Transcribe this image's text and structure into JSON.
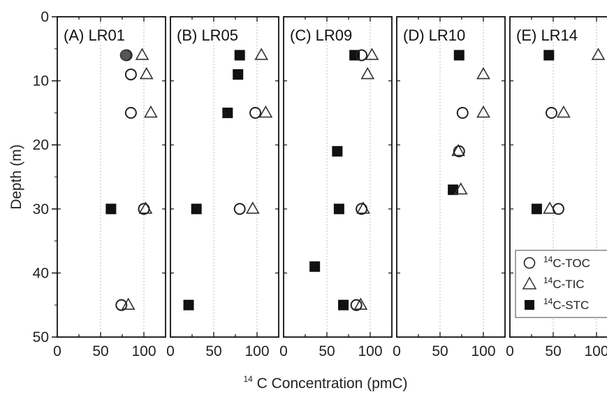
{
  "chart_data": {
    "type": "scatter",
    "xlabel_sup": "14",
    "xlabel_main": "C Concentration (pmC)",
    "ylabel": "Depth (m)",
    "ylim": [
      0,
      50
    ],
    "yticks": [
      "0",
      "10",
      "20",
      "30",
      "40",
      "50"
    ],
    "xlim": [
      0,
      125
    ],
    "xticks": [
      "0",
      "50",
      "100"
    ],
    "grid": "vertical dotted at 50 and 100",
    "legend": {
      "placement": "bottom-right of panel E",
      "entries": [
        {
          "sup": "14",
          "text": "C-TOC",
          "marker": "circle-open"
        },
        {
          "sup": "14",
          "text": "C-TIC",
          "marker": "triangle-open"
        },
        {
          "sup": "14",
          "text": "C-STC",
          "marker": "square-filled"
        }
      ]
    },
    "panels": [
      {
        "title": "(A) LR01",
        "toc": [
          [
            80,
            6
          ],
          [
            85,
            9
          ],
          [
            85,
            15
          ],
          [
            100,
            30
          ],
          [
            74,
            45
          ]
        ],
        "tic": [
          [
            98,
            6
          ],
          [
            103,
            9
          ],
          [
            108,
            15
          ],
          [
            102,
            30
          ],
          [
            82,
            45
          ]
        ],
        "stc": [
          [
            62,
            30
          ]
        ],
        "toc_filled": [
          [
            79,
            6
          ]
        ]
      },
      {
        "title": "(B) LR05",
        "toc": [
          [
            98,
            15
          ],
          [
            80,
            30
          ]
        ],
        "tic": [
          [
            105,
            6
          ],
          [
            110,
            15
          ],
          [
            95,
            30
          ]
        ],
        "stc": [
          [
            80,
            6
          ],
          [
            78,
            9
          ],
          [
            66,
            15
          ],
          [
            30,
            30
          ],
          [
            21,
            45
          ]
        ]
      },
      {
        "title": "(C) LR09",
        "toc": [
          [
            90,
            6
          ],
          [
            90,
            30
          ],
          [
            84,
            45
          ]
        ],
        "tic": [
          [
            102,
            6
          ],
          [
            97,
            9
          ],
          [
            92,
            30
          ],
          [
            89,
            45
          ]
        ],
        "stc": [
          [
            82,
            6
          ],
          [
            62,
            21
          ],
          [
            64,
            30
          ],
          [
            36,
            39
          ],
          [
            69,
            45
          ]
        ]
      },
      {
        "title": "(D) LR10",
        "toc": [
          [
            76,
            15
          ],
          [
            72,
            21
          ]
        ],
        "tic": [
          [
            100,
            9
          ],
          [
            100,
            15
          ],
          [
            71,
            21
          ],
          [
            74,
            27
          ]
        ],
        "stc": [
          [
            72,
            6
          ],
          [
            65,
            27
          ]
        ]
      },
      {
        "title": "(E) LR14",
        "toc": [
          [
            48,
            15
          ],
          [
            56,
            30
          ]
        ],
        "tic": [
          [
            102,
            6
          ],
          [
            62,
            15
          ],
          [
            46,
            30
          ]
        ],
        "stc": [
          [
            45,
            6
          ],
          [
            31,
            30
          ]
        ]
      }
    ]
  }
}
